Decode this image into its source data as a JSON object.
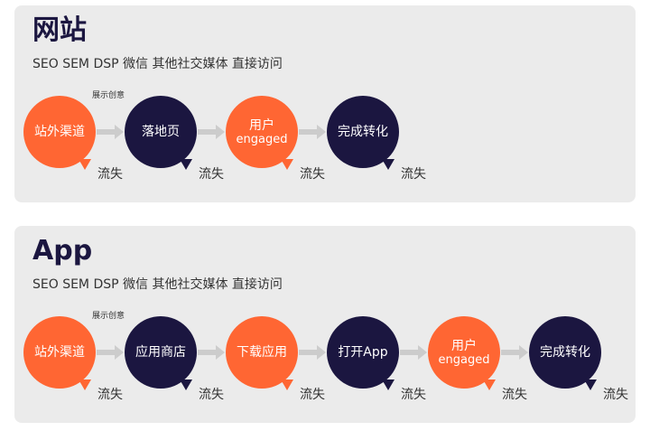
{
  "colors": {
    "orange": "#ff6633",
    "navy": "#1b1640",
    "arrow": "#cccccc",
    "panel": "#ebebeb"
  },
  "sections": [
    {
      "title": "网站",
      "channels": "SEO SEM DSP 微信 其他社交媒体 直接访问",
      "creative_label": "展示创意",
      "nodes": [
        {
          "line1": "站外渠道",
          "line2": "",
          "color": "orange",
          "churn": "流失"
        },
        {
          "line1": "落地页",
          "line2": "",
          "color": "navy",
          "churn": "流失"
        },
        {
          "line1": "用户",
          "line2": "engaged",
          "color": "orange",
          "churn": "流失"
        },
        {
          "line1": "完成转化",
          "line2": "",
          "color": "navy",
          "churn": "流失"
        }
      ]
    },
    {
      "title": "App",
      "channels": "SEO SEM DSP 微信 其他社交媒体 直接访问",
      "creative_label": "展示创意",
      "nodes": [
        {
          "line1": "站外渠道",
          "line2": "",
          "color": "orange",
          "churn": "流失"
        },
        {
          "line1": "应用商店",
          "line2": "",
          "color": "navy",
          "churn": "流失"
        },
        {
          "line1": "下载应用",
          "line2": "",
          "color": "orange",
          "churn": "流失"
        },
        {
          "line1": "打开App",
          "line2": "",
          "color": "navy",
          "churn": "流失"
        },
        {
          "line1": "用户",
          "line2": "engaged",
          "color": "orange",
          "churn": "流失"
        },
        {
          "line1": "完成转化",
          "line2": "",
          "color": "navy",
          "churn": "流失"
        }
      ]
    }
  ]
}
